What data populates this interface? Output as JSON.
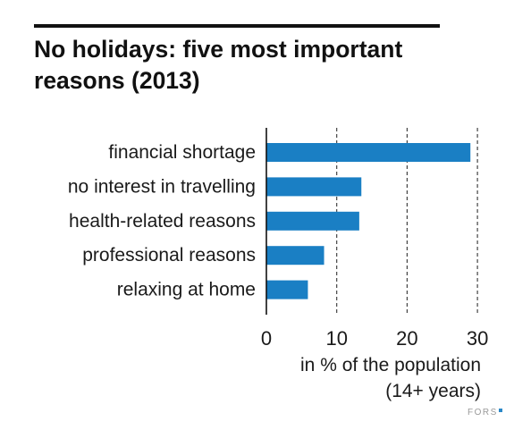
{
  "title_line1": "No holidays: five most important",
  "title_line2": "reasons (2013)",
  "chart_data": {
    "type": "bar",
    "orientation": "horizontal",
    "title": "No holidays: five most important reasons (2013)",
    "categories": [
      "financial shortage",
      "no interest in travelling",
      "health-related reasons",
      "professional reasons",
      "relaxing at home"
    ],
    "values": [
      29,
      13.5,
      13.2,
      8.2,
      5.9
    ],
    "xlabel_line1": "in % of the population",
    "xlabel_line2": "(14+ years)",
    "xlim": [
      0,
      30
    ],
    "xticks": [
      "0",
      "10",
      "20",
      "30"
    ],
    "grid": "dashed vertical at 10, 20, 30",
    "bar_color": "#1a7fc4"
  },
  "logo": "FORS",
  "logo_dot_color": "#2a88c8"
}
